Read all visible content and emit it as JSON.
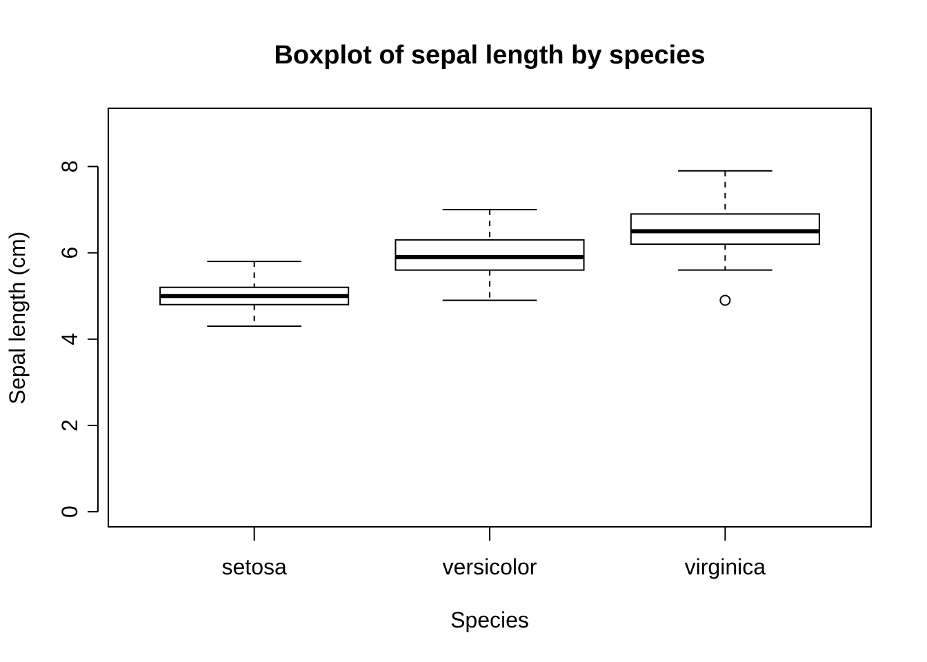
{
  "chart_data": {
    "type": "boxplot",
    "title": "Boxplot of sepal length by species",
    "xlabel": "Species",
    "ylabel": "Sepal length (cm)",
    "ylim": [
      -0.35,
      9.35
    ],
    "yticks": [
      0,
      2,
      4,
      6,
      8
    ],
    "grid": false,
    "categories": [
      "setosa",
      "versicolor",
      "virginica"
    ],
    "boxes": [
      {
        "category": "setosa",
        "whisker_low": 4.3,
        "q1": 4.8,
        "median": 5.0,
        "q3": 5.2,
        "whisker_high": 5.8,
        "outliers": []
      },
      {
        "category": "versicolor",
        "whisker_low": 4.9,
        "q1": 5.6,
        "median": 5.9,
        "q3": 6.3,
        "whisker_high": 7.0,
        "outliers": []
      },
      {
        "category": "virginica",
        "whisker_low": 5.6,
        "q1": 6.2,
        "median": 6.5,
        "q3": 6.9,
        "whisker_high": 7.9,
        "outliers": [
          4.9
        ]
      }
    ]
  }
}
